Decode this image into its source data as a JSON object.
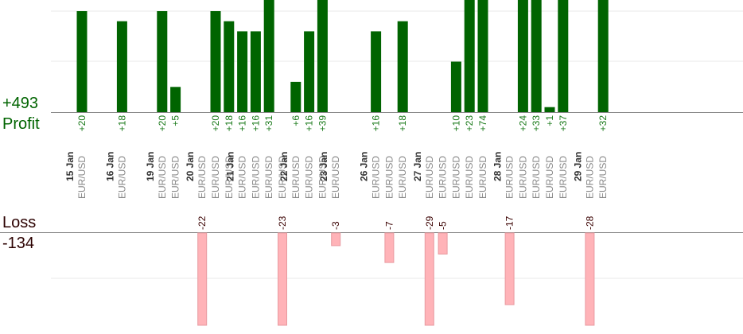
{
  "summary": {
    "profit_total": "+493",
    "profit_label": "Profit",
    "loss_label": "Loss",
    "loss_total": "-134"
  },
  "chart_data": {
    "type": "bar",
    "instrument": "EUR/USD",
    "days": [
      {
        "date": "15 Jan",
        "trades": [
          {
            "v": 20
          }
        ]
      },
      {
        "date": "16 Jan",
        "trades": [
          {
            "v": 18
          }
        ]
      },
      {
        "date": "19 Jan",
        "trades": [
          {
            "v": 20
          },
          {
            "v": 5
          }
        ]
      },
      {
        "date": "20 Jan",
        "trades": [
          {
            "v": -22
          },
          {
            "v": 20
          },
          {
            "v": 18
          }
        ]
      },
      {
        "date": "21 Jan",
        "trades": [
          {
            "v": 16
          },
          {
            "v": 16
          },
          {
            "v": 31
          },
          {
            "v": -23
          }
        ]
      },
      {
        "date": "22 Jan",
        "trades": [
          {
            "v": 6
          },
          {
            "v": 16
          },
          {
            "v": 39
          }
        ]
      },
      {
        "date": "23 Jan",
        "trades": [
          {
            "v": -3
          }
        ]
      },
      {
        "date": "26 Jan",
        "trades": [
          {
            "v": 16
          },
          {
            "v": -7
          },
          {
            "v": 18
          }
        ]
      },
      {
        "date": "27 Jan",
        "trades": [
          {
            "v": -29
          },
          {
            "v": -5
          },
          {
            "v": 10
          },
          {
            "v": 23
          },
          {
            "v": 74
          }
        ]
      },
      {
        "date": "28 Jan",
        "trades": [
          {
            "v": -17
          },
          {
            "v": 24
          },
          {
            "v": 33
          },
          {
            "v": 1
          },
          {
            "v": 37
          }
        ]
      },
      {
        "date": "29 Jan",
        "trades": [
          {
            "v": -28
          },
          {
            "v": 32
          }
        ]
      }
    ],
    "colors": {
      "profit_bar": "#006400",
      "profit_label": "#1a7a1a",
      "loss_bar": "#ffb3b8",
      "loss_bar_edge": "#e89aa0",
      "loss_label": "#3a0000",
      "axis": "#888888",
      "grid": "#e8e8e8",
      "date_text": "#333333",
      "instrument_text": "#888888"
    }
  }
}
